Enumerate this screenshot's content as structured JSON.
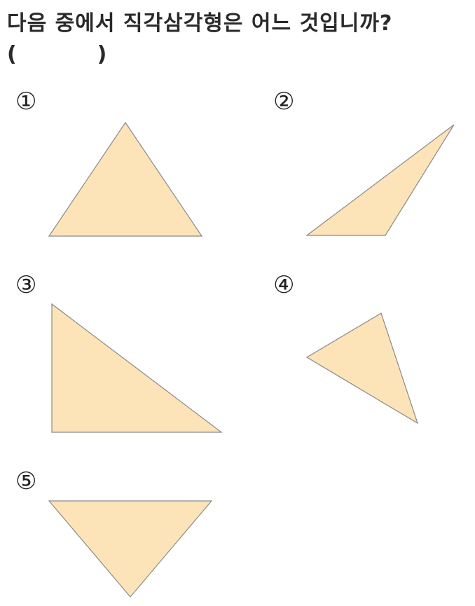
{
  "question": {
    "text": "다음 중에서 직각삼각형은 어느 것입니까?",
    "answer_blank": "(           )"
  },
  "options": [
    {
      "label": "①"
    },
    {
      "label": "②"
    },
    {
      "label": "③"
    },
    {
      "label": "④"
    },
    {
      "label": "⑤"
    }
  ],
  "colors": {
    "triangle_fill": "#fde3b8",
    "triangle_stroke": "#8a8a8a"
  }
}
